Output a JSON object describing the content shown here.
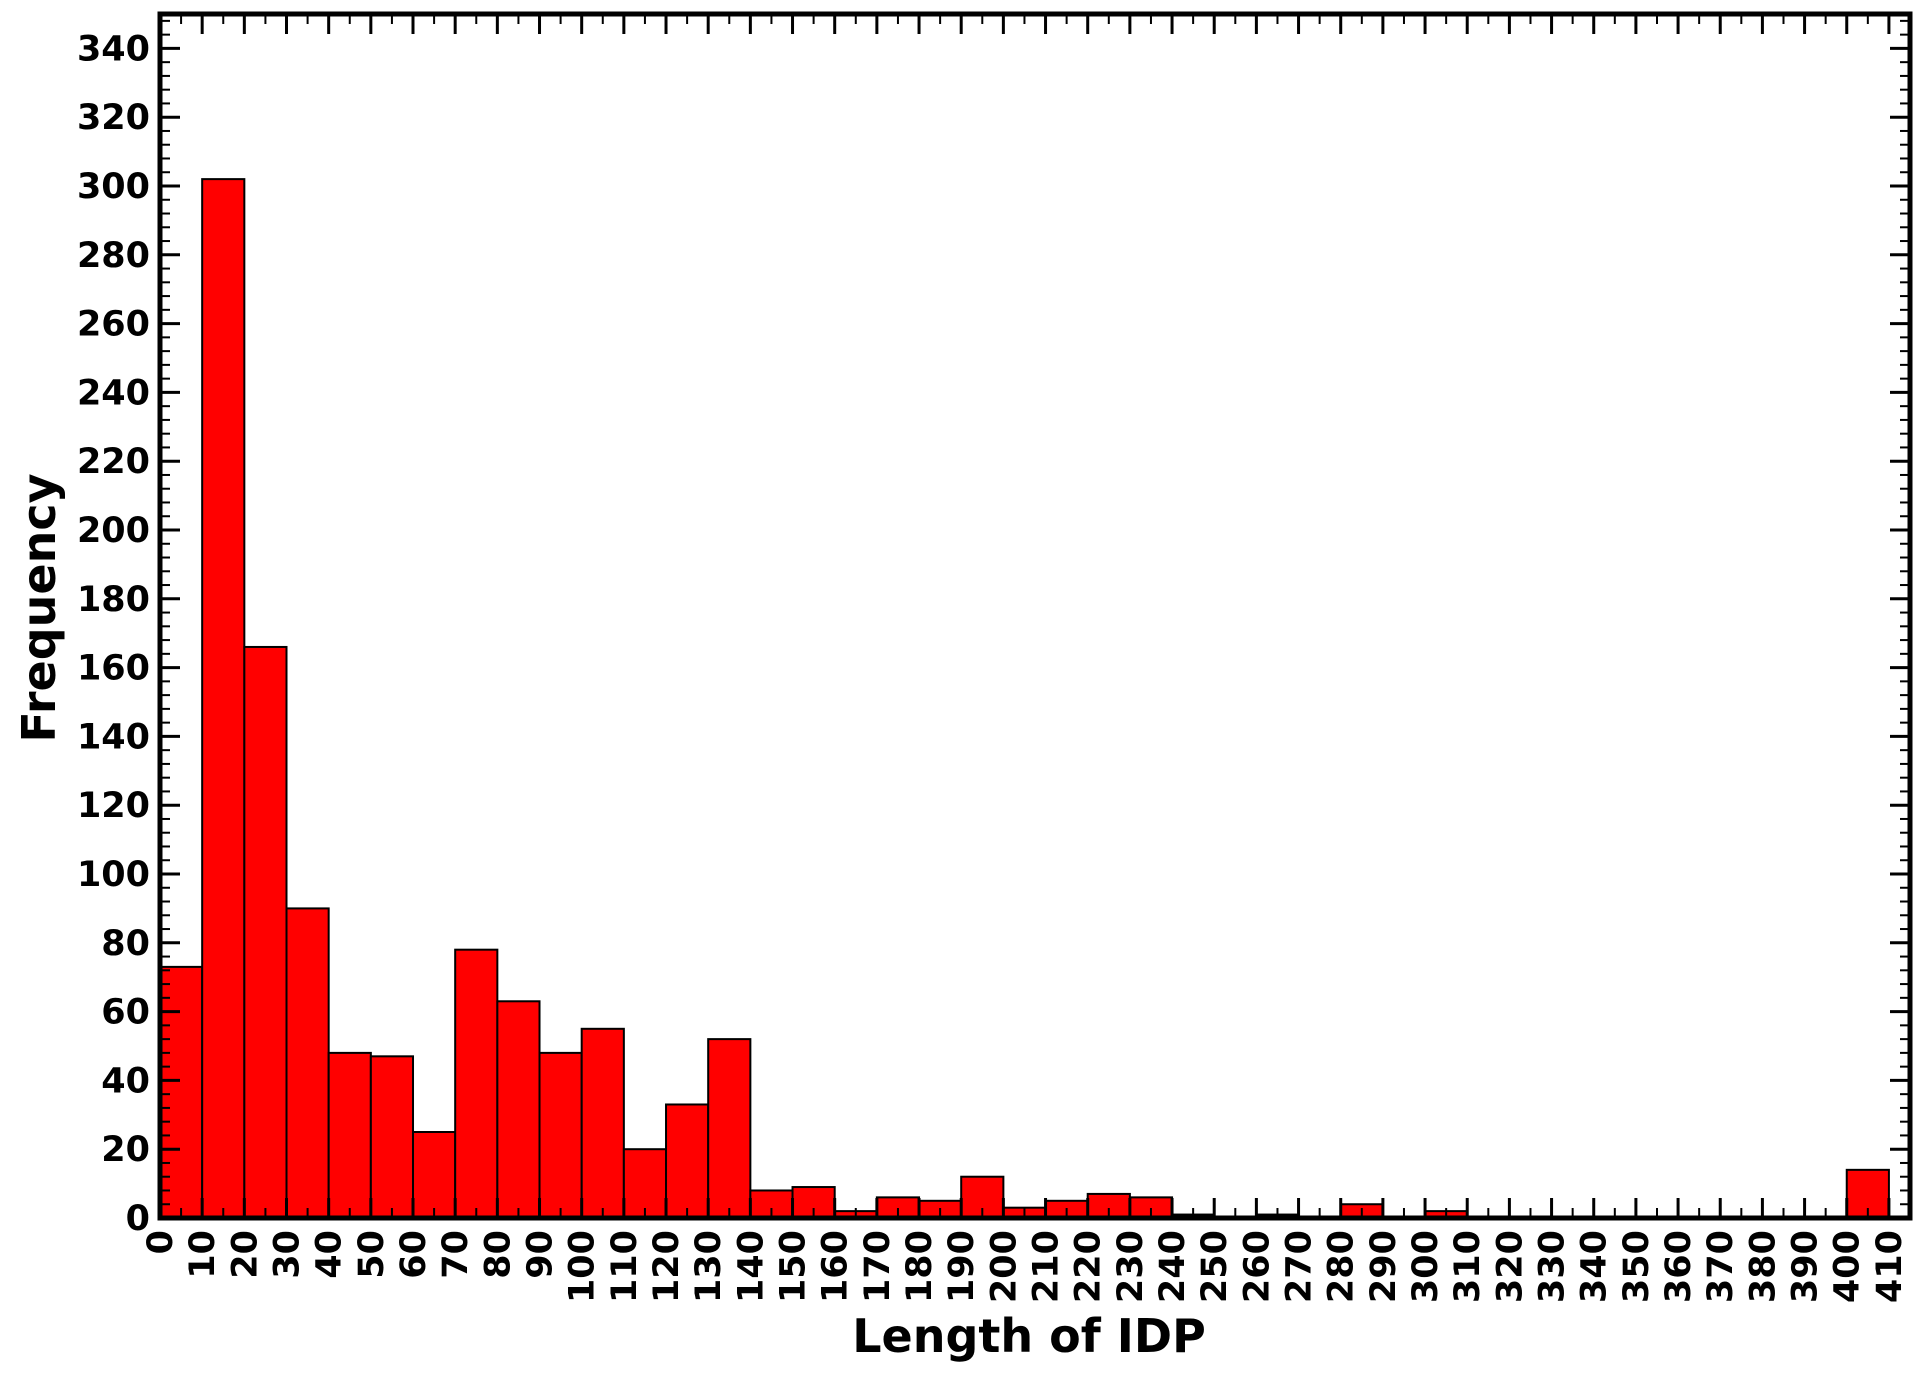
{
  "chart_data": {
    "type": "bar",
    "xlabel": "Length of IDP",
    "ylabel": "Frequency",
    "xlim": [
      0,
      415
    ],
    "ylim": [
      0,
      350
    ],
    "bin_width": 10,
    "bar_color": "#ff0000",
    "edge_color": "#000000",
    "x_ticks": [
      0,
      10,
      20,
      30,
      40,
      50,
      60,
      70,
      80,
      90,
      100,
      110,
      120,
      130,
      140,
      150,
      160,
      170,
      180,
      190,
      200,
      210,
      220,
      230,
      240,
      250,
      260,
      270,
      280,
      290,
      300,
      310,
      320,
      330,
      340,
      350,
      360,
      370,
      380,
      390,
      400,
      410
    ],
    "y_ticks": [
      0,
      20,
      40,
      60,
      80,
      100,
      120,
      140,
      160,
      180,
      200,
      220,
      240,
      260,
      280,
      300,
      320,
      340
    ],
    "bins": [
      0,
      10,
      20,
      30,
      40,
      50,
      60,
      70,
      80,
      90,
      100,
      110,
      120,
      130,
      140,
      150,
      160,
      170,
      180,
      190,
      200,
      210,
      220,
      230,
      240,
      250,
      260,
      270,
      280,
      290,
      300,
      310,
      320,
      330,
      340,
      350,
      360,
      370,
      380,
      390,
      400
    ],
    "values": [
      73,
      302,
      166,
      90,
      48,
      47,
      25,
      78,
      63,
      48,
      55,
      20,
      33,
      52,
      8,
      9,
      2,
      6,
      5,
      12,
      3,
      5,
      7,
      6,
      1,
      0,
      1,
      0,
      4,
      0,
      2,
      0,
      0,
      0,
      0,
      0,
      0,
      0,
      0,
      0,
      14
    ]
  }
}
